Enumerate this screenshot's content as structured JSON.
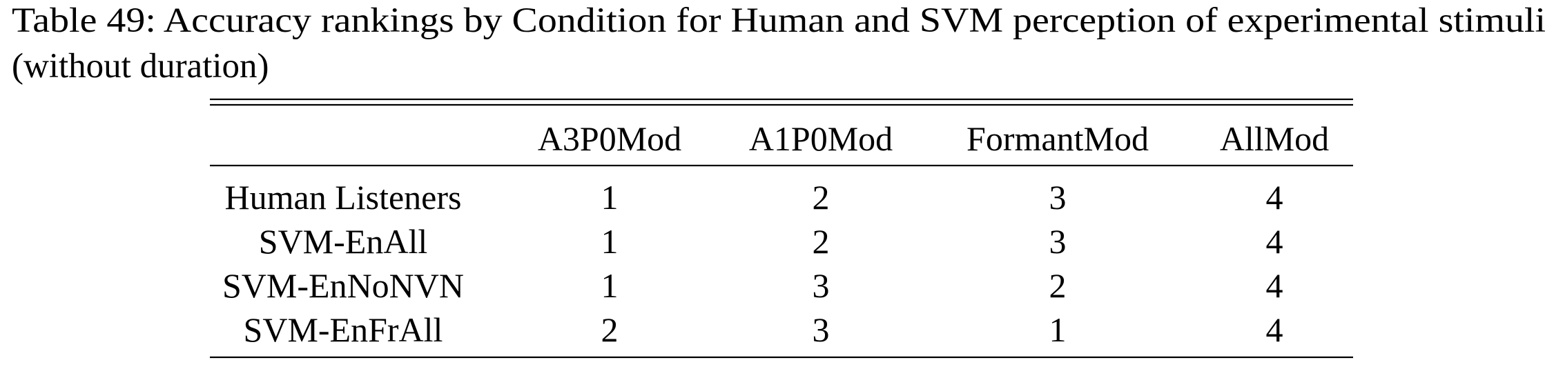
{
  "caption": [
    "Table 49:  Accuracy rankings by Condition for Human and SVM perception of experimental stimuli",
    "(without duration)"
  ],
  "table": {
    "columns": [
      "A3P0Mod",
      "A1P0Mod",
      "FormantMod",
      "AllMod"
    ],
    "rows": [
      [
        "Human Listeners",
        1,
        2,
        3,
        4
      ],
      [
        "SVM-EnAll",
        1,
        2,
        3,
        4
      ],
      [
        "SVM-EnNoNVN",
        1,
        3,
        2,
        4
      ],
      [
        "SVM-EnFrAll",
        2,
        3,
        1,
        4
      ]
    ]
  }
}
